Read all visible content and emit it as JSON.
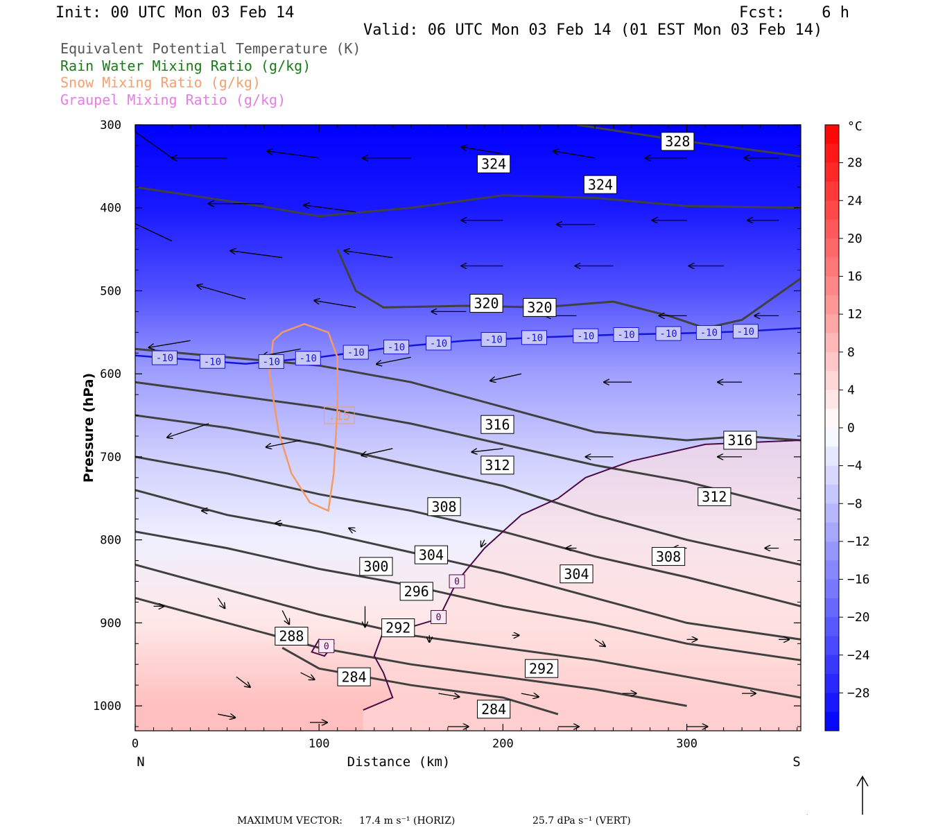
{
  "header": {
    "init": "Init: 00 UTC Mon 03 Feb 14",
    "fcst": "Fcst:    6 h",
    "valid": "Valid: 06 UTC Mon 03 Feb 14 (01 EST Mon 03 Feb 14)"
  },
  "legend": [
    {
      "label": "Equivalent Potential Temperature (K)",
      "color": "#555555"
    },
    {
      "label": "Rain Water Mixing Ratio (g/kg)",
      "color": "#1a7a1a"
    },
    {
      "label": "Snow Mixing Ratio (g/kg)",
      "color": "#f4a070"
    },
    {
      "label": "Graupel Mixing Ratio (g/kg)",
      "color": "#e67ce6"
    }
  ],
  "chart_data": {
    "type": "cross-section",
    "xlabel": "Distance (km)",
    "ylabel": "Pressure (hPa)",
    "xlim": [
      0,
      362
    ],
    "ylim": [
      1030,
      300
    ],
    "x_ticks": [
      0,
      100,
      200,
      300
    ],
    "y_ticks": [
      300,
      400,
      500,
      600,
      700,
      800,
      900,
      1000
    ],
    "x_end_labels": {
      "left": "N",
      "right": "S"
    },
    "colorbar": {
      "unit": "°C",
      "range": [
        -32,
        32
      ],
      "tick_values": [
        28,
        24,
        20,
        16,
        12,
        8,
        4,
        0,
        -4,
        -8,
        -12,
        -16,
        -20,
        -24,
        -28
      ]
    },
    "theta_e_contours": [
      {
        "value": 328,
        "points": [
          [
            240,
            300
          ],
          [
            300,
            320
          ],
          [
            362,
            338
          ]
        ]
      },
      {
        "value": 324,
        "points": [
          [
            0,
            375
          ],
          [
            60,
            395
          ],
          [
            100,
            410
          ],
          [
            150,
            400
          ],
          [
            200,
            385
          ],
          [
            250,
            388
          ],
          [
            300,
            398
          ],
          [
            362,
            400
          ]
        ]
      },
      {
        "value": 320,
        "points": [
          [
            110,
            450
          ],
          [
            120,
            500
          ],
          [
            135,
            520
          ],
          [
            180,
            518
          ],
          [
            220,
            520
          ],
          [
            260,
            513
          ],
          [
            290,
            530
          ],
          [
            310,
            545
          ],
          [
            330,
            535
          ],
          [
            362,
            485
          ]
        ]
      },
      {
        "value": 316,
        "points": [
          [
            0,
            570
          ],
          [
            50,
            580
          ],
          [
            100,
            590
          ],
          [
            150,
            610
          ],
          [
            200,
            640
          ],
          [
            250,
            670
          ],
          [
            300,
            680
          ],
          [
            330,
            675
          ],
          [
            362,
            680
          ]
        ]
      },
      {
        "value": 312,
        "points": [
          [
            0,
            610
          ],
          [
            50,
            625
          ],
          [
            100,
            640
          ],
          [
            150,
            660
          ],
          [
            200,
            685
          ],
          [
            250,
            710
          ],
          [
            300,
            730
          ],
          [
            362,
            765
          ]
        ]
      },
      {
        "value": 308,
        "points": [
          [
            0,
            650
          ],
          [
            50,
            665
          ],
          [
            100,
            685
          ],
          [
            150,
            710
          ],
          [
            200,
            735
          ],
          [
            250,
            770
          ],
          [
            300,
            800
          ],
          [
            362,
            830
          ]
        ]
      },
      {
        "value": 304,
        "points": [
          [
            0,
            700
          ],
          [
            50,
            720
          ],
          [
            100,
            745
          ],
          [
            150,
            765
          ],
          [
            200,
            790
          ],
          [
            250,
            820
          ],
          [
            300,
            845
          ],
          [
            362,
            880
          ]
        ]
      },
      {
        "value": 300,
        "points": [
          [
            0,
            740
          ],
          [
            50,
            770
          ],
          [
            100,
            790
          ],
          [
            150,
            815
          ],
          [
            200,
            840
          ],
          [
            250,
            870
          ],
          [
            300,
            900
          ],
          [
            362,
            920
          ]
        ]
      },
      {
        "value": 296,
        "points": [
          [
            0,
            790
          ],
          [
            50,
            810
          ],
          [
            100,
            835
          ],
          [
            150,
            855
          ],
          [
            200,
            880
          ],
          [
            250,
            900
          ],
          [
            300,
            925
          ],
          [
            362,
            945
          ]
        ]
      },
      {
        "value": 292,
        "points": [
          [
            0,
            830
          ],
          [
            50,
            860
          ],
          [
            100,
            890
          ],
          [
            150,
            915
          ],
          [
            200,
            930
          ],
          [
            250,
            945
          ],
          [
            300,
            965
          ],
          [
            362,
            990
          ]
        ]
      },
      {
        "value": 288,
        "points": [
          [
            0,
            870
          ],
          [
            50,
            900
          ],
          [
            100,
            930
          ],
          [
            150,
            950
          ],
          [
            200,
            965
          ],
          [
            250,
            980
          ],
          [
            300,
            1000
          ]
        ]
      },
      {
        "value": 284,
        "points": [
          [
            80,
            930
          ],
          [
            100,
            955
          ],
          [
            150,
            975
          ],
          [
            200,
            990
          ],
          [
            230,
            1010
          ]
        ]
      }
    ],
    "theta_e_labels": [
      {
        "value": "328",
        "x": 295,
        "p": 320
      },
      {
        "value": "324",
        "x": 195,
        "p": 347
      },
      {
        "value": "324",
        "x": 253,
        "p": 372
      },
      {
        "value": "320",
        "x": 191,
        "p": 515
      },
      {
        "value": "320",
        "x": 220,
        "p": 520
      },
      {
        "value": "316",
        "x": 197,
        "p": 661
      },
      {
        "value": "316",
        "x": 329,
        "p": 680
      },
      {
        "value": "312",
        "x": 197,
        "p": 710
      },
      {
        "value": "312",
        "x": 315,
        "p": 748
      },
      {
        "value": "308",
        "x": 168,
        "p": 760
      },
      {
        "value": "308",
        "x": 290,
        "p": 820
      },
      {
        "value": "304",
        "x": 161,
        "p": 818
      },
      {
        "value": "304",
        "x": 240,
        "p": 841
      },
      {
        "value": "300",
        "x": 131,
        "p": 832
      },
      {
        "value": "296",
        "x": 153,
        "p": 862
      },
      {
        "value": "292",
        "x": 143,
        "p": 906
      },
      {
        "value": "292",
        "x": 221,
        "p": 955
      },
      {
        "value": "288",
        "x": 85,
        "p": 916
      },
      {
        "value": "284",
        "x": 119,
        "p": 965
      },
      {
        "value": "284",
        "x": 195,
        "p": 1004
      }
    ],
    "isotherm_minus10": {
      "value": "-10",
      "points": [
        [
          0,
          578
        ],
        [
          30,
          583
        ],
        [
          60,
          588
        ],
        [
          100,
          580
        ],
        [
          140,
          568
        ],
        [
          180,
          560
        ],
        [
          220,
          556
        ],
        [
          260,
          553
        ],
        [
          300,
          551
        ],
        [
          330,
          549
        ],
        [
          362,
          545
        ]
      ],
      "label_x": [
        16,
        42,
        74,
        94,
        120,
        142,
        165,
        195,
        217,
        245,
        267,
        290,
        312,
        332
      ]
    },
    "isotherm_zero": {
      "value": "0",
      "points": [
        [
          124,
          1005
        ],
        [
          140,
          990
        ],
        [
          135,
          960
        ],
        [
          130,
          940
        ],
        [
          135,
          910
        ],
        [
          150,
          905
        ],
        [
          165,
          895
        ],
        [
          175,
          850
        ],
        [
          190,
          810
        ],
        [
          210,
          770
        ],
        [
          230,
          750
        ],
        [
          245,
          725
        ],
        [
          270,
          705
        ],
        [
          310,
          685
        ],
        [
          362,
          680
        ]
      ],
      "loop": [
        [
          100,
          920
        ],
        [
          108,
          925
        ],
        [
          103,
          940
        ],
        [
          96,
          935
        ]
      ],
      "label_positions": [
        [
          175,
          850
        ],
        [
          165,
          893
        ],
        [
          104,
          928
        ]
      ]
    },
    "snow_contour": {
      "value": ".15",
      "points": [
        [
          80,
          550
        ],
        [
          92,
          540
        ],
        [
          105,
          550
        ],
        [
          110,
          580
        ],
        [
          110,
          640
        ],
        [
          108,
          720
        ],
        [
          105,
          765
        ],
        [
          95,
          755
        ],
        [
          85,
          720
        ],
        [
          78,
          670
        ],
        [
          73,
          600
        ],
        [
          75,
          560
        ]
      ],
      "label_x": 111,
      "label_p": 650
    },
    "temperature_field": [
      {
        "p": 300,
        "t": -32
      },
      {
        "p": 400,
        "t": -29
      },
      {
        "p": 500,
        "t": -22
      },
      {
        "p": 600,
        "t": -12
      },
      {
        "p": 700,
        "t": -6
      },
      {
        "p": 800,
        "t": -2
      },
      {
        "p": 900,
        "t": 3
      },
      {
        "p": 1000,
        "t": 8
      }
    ],
    "wind_vectors": [
      {
        "x": 20,
        "p": 340,
        "u": -14,
        "w": 10
      },
      {
        "x": 50,
        "p": 340,
        "u": -16,
        "w": 0
      },
      {
        "x": 100,
        "p": 340,
        "u": -15,
        "w": 2
      },
      {
        "x": 150,
        "p": 340,
        "u": -14,
        "w": 0
      },
      {
        "x": 200,
        "p": 335,
        "u": -12,
        "w": 2
      },
      {
        "x": 250,
        "p": 340,
        "u": -12,
        "w": 2
      },
      {
        "x": 300,
        "p": 340,
        "u": -12,
        "w": 0
      },
      {
        "x": 350,
        "p": 340,
        "u": -10,
        "w": 0
      },
      {
        "x": 20,
        "p": 440,
        "u": -17,
        "w": 8
      },
      {
        "x": 70,
        "p": 395,
        "u": -16,
        "w": 0
      },
      {
        "x": 120,
        "p": 405,
        "u": -15,
        "w": 2
      },
      {
        "x": 200,
        "p": 415,
        "u": -12,
        "w": 0
      },
      {
        "x": 250,
        "p": 420,
        "u": -11,
        "w": 0
      },
      {
        "x": 300,
        "p": 415,
        "u": -10,
        "w": 0
      },
      {
        "x": 350,
        "p": 415,
        "u": -9,
        "w": 0
      },
      {
        "x": 80,
        "p": 460,
        "u": -15,
        "w": 2
      },
      {
        "x": 140,
        "p": 460,
        "u": -14,
        "w": 2
      },
      {
        "x": 200,
        "p": 470,
        "u": -12,
        "w": 0
      },
      {
        "x": 260,
        "p": 470,
        "u": -11,
        "w": 0
      },
      {
        "x": 320,
        "p": 470,
        "u": -10,
        "w": 0
      },
      {
        "x": 60,
        "p": 510,
        "u": -14,
        "w": 4
      },
      {
        "x": 120,
        "p": 520,
        "u": -12,
        "w": 2
      },
      {
        "x": 180,
        "p": 525,
        "u": -10,
        "w": 0
      },
      {
        "x": 240,
        "p": 530,
        "u": -9,
        "w": 0
      },
      {
        "x": 300,
        "p": 530,
        "u": -8,
        "w": 0
      },
      {
        "x": 350,
        "p": 530,
        "u": -7,
        "w": 0
      },
      {
        "x": 30,
        "p": 560,
        "u": -12,
        "w": -2
      },
      {
        "x": 90,
        "p": 570,
        "u": -11,
        "w": -2
      },
      {
        "x": 150,
        "p": 580,
        "u": -10,
        "w": -2
      },
      {
        "x": 210,
        "p": 600,
        "u": -9,
        "w": -2
      },
      {
        "x": 270,
        "p": 610,
        "u": -8,
        "w": 0
      },
      {
        "x": 330,
        "p": 610,
        "u": -7,
        "w": 0
      },
      {
        "x": 40,
        "p": 660,
        "u": -12,
        "w": -4
      },
      {
        "x": 90,
        "p": 680,
        "u": -10,
        "w": -2
      },
      {
        "x": 140,
        "p": 690,
        "u": -9,
        "w": -2
      },
      {
        "x": 200,
        "p": 690,
        "u": -9,
        "w": -1
      },
      {
        "x": 260,
        "p": 700,
        "u": -8,
        "w": 0
      },
      {
        "x": 330,
        "p": 700,
        "u": -7,
        "w": 0
      },
      {
        "x": 40,
        "p": 765,
        "u": -2,
        "w": 0
      },
      {
        "x": 80,
        "p": 780,
        "u": -2,
        "w": 0
      },
      {
        "x": 120,
        "p": 790,
        "u": -2,
        "w": 1
      },
      {
        "x": 190,
        "p": 800,
        "u": -1,
        "w": -2
      },
      {
        "x": 240,
        "p": 810,
        "u": -3,
        "w": 0
      },
      {
        "x": 300,
        "p": 810,
        "u": -4,
        "w": 0
      },
      {
        "x": 350,
        "p": 810,
        "u": -4,
        "w": 0
      },
      {
        "x": 10,
        "p": 880,
        "u": 3,
        "w": 0
      },
      {
        "x": 45,
        "p": 870,
        "u": 2,
        "w": -3
      },
      {
        "x": 80,
        "p": 885,
        "u": 2,
        "w": -4
      },
      {
        "x": 125,
        "p": 880,
        "u": 0,
        "w": -6
      },
      {
        "x": 160,
        "p": 915,
        "u": 0,
        "w": -2
      },
      {
        "x": 205,
        "p": 915,
        "u": 2,
        "w": 0
      },
      {
        "x": 250,
        "p": 920,
        "u": 3,
        "w": -2
      },
      {
        "x": 300,
        "p": 920,
        "u": 3,
        "w": 0
      },
      {
        "x": 350,
        "p": 920,
        "u": 3,
        "w": 0
      },
      {
        "x": 55,
        "p": 965,
        "u": 4,
        "w": -3
      },
      {
        "x": 90,
        "p": 960,
        "u": 4,
        "w": -2
      },
      {
        "x": 165,
        "p": 985,
        "u": 6,
        "w": -1
      },
      {
        "x": 210,
        "p": 985,
        "u": 5,
        "w": -1
      },
      {
        "x": 265,
        "p": 985,
        "u": 4,
        "w": 0
      },
      {
        "x": 330,
        "p": 985,
        "u": 4,
        "w": 0
      },
      {
        "x": 45,
        "p": 1010,
        "u": 5,
        "w": -1
      },
      {
        "x": 95,
        "p": 1020,
        "u": 5,
        "w": 0
      },
      {
        "x": 170,
        "p": 1025,
        "u": 6,
        "w": 0
      },
      {
        "x": 230,
        "p": 1025,
        "u": 6,
        "w": 0
      },
      {
        "x": 300,
        "p": 1025,
        "u": 6,
        "w": 0
      }
    ]
  },
  "footer": {
    "max_vector_label": "MAXIMUM VECTOR:",
    "horiz": "17.4 m s⁻¹ (HORIZ)",
    "vert": "25.7 dPa s⁻¹ (VERT)"
  }
}
